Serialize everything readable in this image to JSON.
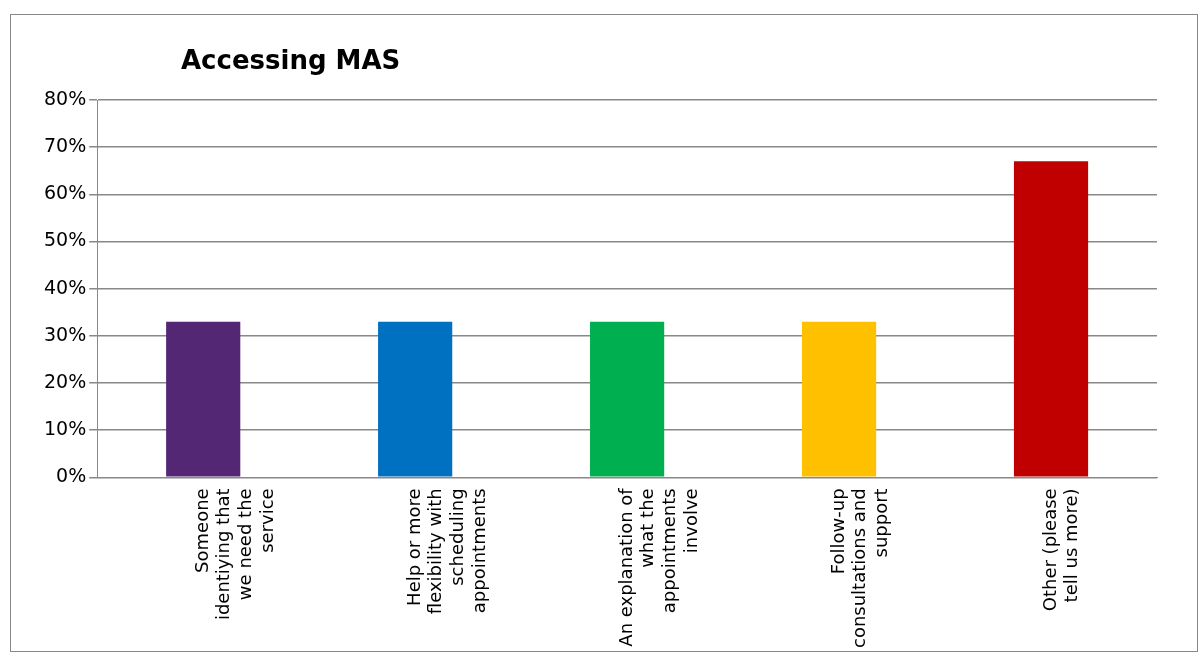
{
  "chart_data": {
    "type": "bar",
    "title": "Accessing MAS",
    "categories": [
      "Someone identiying that we need the service",
      "Help or more flexibility with scheduling appointments",
      "An explanation of what the appointments involve",
      "Follow-up consultations and support",
      "Other (please tell us more)"
    ],
    "values": [
      33,
      33,
      33,
      33,
      67
    ],
    "colors": [
      "#532773",
      "#0070c0",
      "#00b050",
      "#ffc000",
      "#c00000"
    ],
    "ylim": [
      0,
      80
    ],
    "yticks": [
      {
        "value": 0,
        "label": "0%"
      },
      {
        "value": 10,
        "label": "10%"
      },
      {
        "value": 20,
        "label": "20%"
      },
      {
        "value": 30,
        "label": "30%"
      },
      {
        "value": 40,
        "label": "40%"
      },
      {
        "value": 50,
        "label": "50%"
      },
      {
        "value": 60,
        "label": "60%"
      },
      {
        "value": 70,
        "label": "70%"
      },
      {
        "value": 80,
        "label": "80%"
      }
    ],
    "grid": "y",
    "legend": false
  }
}
